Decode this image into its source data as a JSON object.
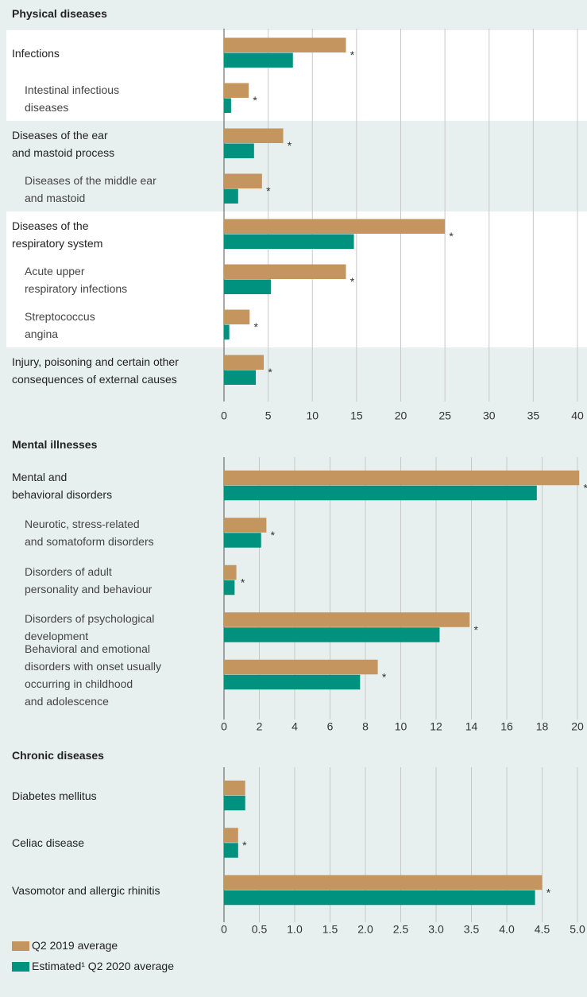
{
  "chart_data": [
    {
      "type": "barh",
      "title": "Physical diseases",
      "banded": true,
      "categories": [
        "Infections",
        "Intestinal infectious\ndiseases",
        "Diseases of the ear\nand mastoid process",
        "Diseases of the middle ear\nand mastoid",
        "Diseases of the\nrespiratory system",
        "Acute upper\nrespiratory infections",
        "Streptococcus\nangina",
        "Injury, poisoning and certain other\nconsequences of external causes"
      ],
      "level": [
        0,
        1,
        0,
        1,
        0,
        1,
        1,
        0
      ],
      "markers": [
        "*",
        "*",
        "*",
        "*",
        "*",
        "*",
        "*",
        "*"
      ],
      "series": [
        {
          "name": "Q2 2019 average",
          "color": "#c4955f",
          "values": [
            13.8,
            2.8,
            6.7,
            4.3,
            25.0,
            13.8,
            2.9,
            4.5
          ]
        },
        {
          "name": "Estimated¹ Q2 2020 average",
          "color": "#00917f",
          "values": [
            7.8,
            0.8,
            3.4,
            1.6,
            14.7,
            5.3,
            0.6,
            3.6
          ]
        }
      ],
      "xlim": [
        0,
        40
      ],
      "xticks": [
        0,
        5,
        10,
        15,
        20,
        25,
        30,
        35,
        40
      ],
      "grid": true
    },
    {
      "type": "barh",
      "title": "Mental illnesses",
      "banded": false,
      "categories": [
        "Mental and\nbehavioral disorders",
        "Neurotic, stress-related\nand somatoform disorders",
        "Disorders of adult\npersonality and behaviour",
        "Disorders of psychological\ndevelopment",
        "Behavioral and emotional\ndisorders with onset usually\noccurring in childhood\nand adolescence"
      ],
      "level": [
        0,
        1,
        1,
        1,
        1
      ],
      "markers": [
        "*",
        "*",
        "*",
        "*",
        "*"
      ],
      "series": [
        {
          "name": "Q2 2019 average",
          "color": "#c4955f",
          "values": [
            20.1,
            2.4,
            0.7,
            13.9,
            8.7
          ]
        },
        {
          "name": "Estimated¹ Q2 2020 average",
          "color": "#00917f",
          "values": [
            17.7,
            2.1,
            0.6,
            12.2,
            7.7
          ]
        }
      ],
      "xlim": [
        0,
        20
      ],
      "xticks": [
        0,
        2,
        4,
        6,
        8,
        10,
        12,
        14,
        16,
        18,
        20
      ],
      "grid": true
    },
    {
      "type": "barh",
      "title": "Chronic diseases",
      "banded": false,
      "categories": [
        "Diabetes mellitus",
        "Celiac disease",
        "Vasomotor and allergic rhinitis"
      ],
      "level": [
        0,
        0,
        0
      ],
      "markers": [
        null,
        "*",
        "*"
      ],
      "series": [
        {
          "name": "Q2 2019 average",
          "color": "#c4955f",
          "values": [
            0.3,
            0.2,
            4.5
          ]
        },
        {
          "name": "Estimated¹ Q2 2020 average",
          "color": "#00917f",
          "values": [
            0.3,
            0.2,
            4.4
          ]
        }
      ],
      "xlim": [
        0,
        5
      ],
      "xticks": [
        0,
        0.5,
        {
          "value": 1,
          "label": "1.0"
        },
        1.5,
        {
          "value": 2,
          "label": "2.0"
        },
        2.5,
        {
          "value": 3,
          "label": "3.0"
        },
        3.5,
        {
          "value": 4,
          "label": "4.0"
        },
        4.5,
        {
          "value": 5,
          "label": "5.0"
        }
      ],
      "grid": true
    }
  ]
}
